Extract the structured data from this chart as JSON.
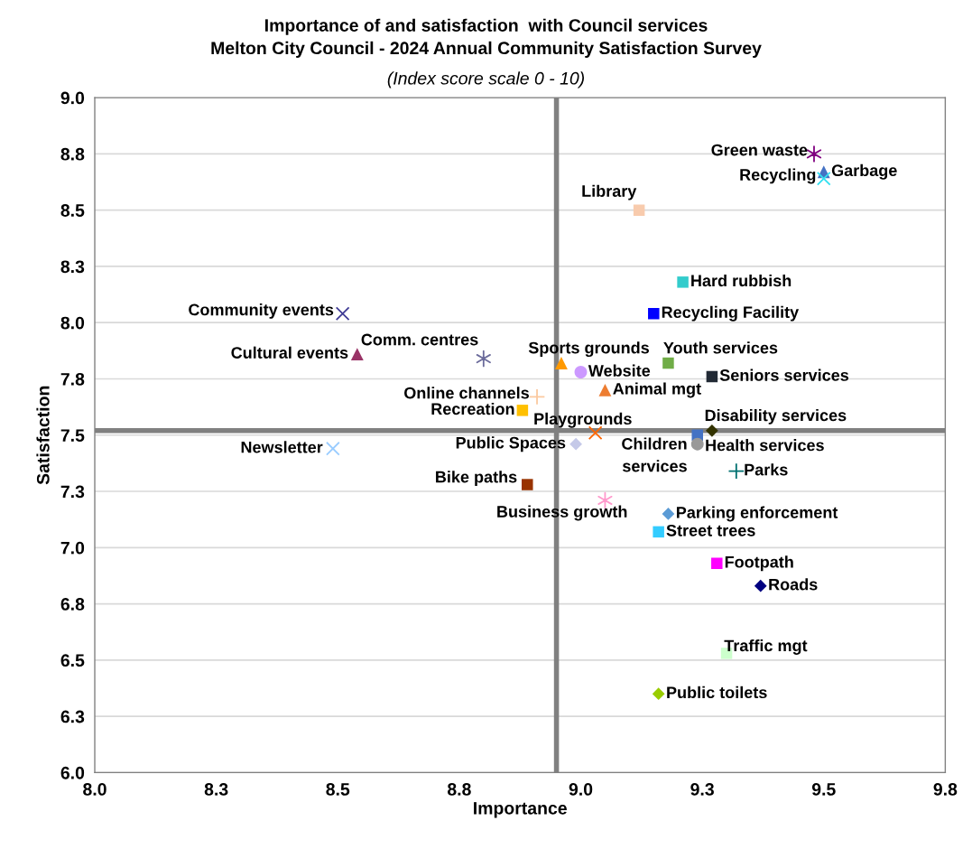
{
  "chart_data": {
    "type": "scatter",
    "title": "Importance of and satisfaction  with Council services\nMelton City Council - 2024 Annual Community Satisfaction Survey",
    "subtitle": "(Index score scale 0 - 10)",
    "xlabel": "Importance",
    "ylabel": "Satisfaction",
    "xlim": [
      8.0,
      9.75
    ],
    "ylim": [
      6.0,
      9.0
    ],
    "xticks": [
      {
        "value": 8.0,
        "label": "8.0"
      },
      {
        "value": 8.25,
        "label": "8.3"
      },
      {
        "value": 8.5,
        "label": "8.5"
      },
      {
        "value": 8.75,
        "label": "8.8"
      },
      {
        "value": 9.0,
        "label": "9.0"
      },
      {
        "value": 9.25,
        "label": "9.3"
      },
      {
        "value": 9.5,
        "label": "9.5"
      },
      {
        "value": 9.75,
        "label": "9.8"
      }
    ],
    "yticks": [
      {
        "value": 6.0,
        "label": "6.0"
      },
      {
        "value": 6.25,
        "label": "6.3"
      },
      {
        "value": 6.5,
        "label": "6.5"
      },
      {
        "value": 6.75,
        "label": "6.8"
      },
      {
        "value": 7.0,
        "label": "7.0"
      },
      {
        "value": 7.25,
        "label": "7.3"
      },
      {
        "value": 7.5,
        "label": "7.5"
      },
      {
        "value": 7.75,
        "label": "7.8"
      },
      {
        "value": 8.0,
        "label": "8.0"
      },
      {
        "value": 8.25,
        "label": "8.3"
      },
      {
        "value": 8.5,
        "label": "8.5"
      },
      {
        "value": 8.75,
        "label": "8.8"
      },
      {
        "value": 9.0,
        "label": "9.0"
      }
    ],
    "grid": "y",
    "ref_lines": [
      {
        "axis": "x",
        "value": 8.95,
        "color": "#808080"
      },
      {
        "axis": "y",
        "value": 7.52,
        "color": "#808080"
      }
    ],
    "series": [
      {
        "name": "Green waste",
        "color": "#800080",
        "marker": "cross",
        "x": [
          9.48
        ],
        "values": [
          8.75
        ]
      },
      {
        "name": "Garbage",
        "color": "#4472c4",
        "marker": "triangle",
        "x": [
          9.5
        ],
        "values": [
          8.67
        ]
      },
      {
        "name": "Recycling",
        "color": "#33e0f0",
        "marker": "cross",
        "x": [
          9.5
        ],
        "values": [
          8.64
        ]
      },
      {
        "name": "Library",
        "color": "#f8cbad",
        "marker": "square",
        "x": [
          9.12
        ],
        "values": [
          8.5
        ]
      },
      {
        "name": "Hard rubbish",
        "color": "#33cccc",
        "marker": "square",
        "x": [
          9.21
        ],
        "values": [
          8.18
        ]
      },
      {
        "name": "Recycling Facility",
        "color": "#0000ff",
        "marker": "square",
        "x": [
          9.15
        ],
        "values": [
          8.04
        ]
      },
      {
        "name": "Community events",
        "color": "#403c96",
        "marker": "cross",
        "x": [
          8.51
        ],
        "values": [
          8.04
        ]
      },
      {
        "name": "Cultural events",
        "color": "#993366",
        "marker": "triangle",
        "x": [
          8.54
        ],
        "values": [
          7.86
        ]
      },
      {
        "name": "Comm. centres",
        "color": "#6b6b9b",
        "marker": "cross",
        "x": [
          8.8
        ],
        "values": [
          7.84
        ]
      },
      {
        "name": "Sports grounds",
        "color": "#ff9900",
        "marker": "triangle",
        "x": [
          8.96
        ],
        "values": [
          7.82
        ]
      },
      {
        "name": "Website",
        "color": "#cc99ff",
        "marker": "circle",
        "x": [
          9.0
        ],
        "values": [
          7.78
        ]
      },
      {
        "name": "Youth services",
        "color": "#70ad47",
        "marker": "square",
        "x": [
          9.18
        ],
        "values": [
          7.82
        ]
      },
      {
        "name": "Seniors services",
        "color": "#222a35",
        "marker": "square",
        "x": [
          9.27
        ],
        "values": [
          7.76
        ]
      },
      {
        "name": "Animal mgt",
        "color": "#ed7d31",
        "marker": "triangle",
        "x": [
          9.05
        ],
        "values": [
          7.7
        ]
      },
      {
        "name": "Online channels",
        "color": "#fbc9a0",
        "marker": "plus",
        "x": [
          8.91
        ],
        "values": [
          7.67
        ]
      },
      {
        "name": "Recreation",
        "color": "#ffc000",
        "marker": "square",
        "x": [
          8.88
        ],
        "values": [
          7.61
        ]
      },
      {
        "name": "Disability services",
        "color": "#333300",
        "marker": "diamond",
        "x": [
          9.27
        ],
        "values": [
          7.52
        ]
      },
      {
        "name": "Playgrounds",
        "color": "#ff6600",
        "marker": "cross",
        "x": [
          9.03
        ],
        "values": [
          7.51
        ]
      },
      {
        "name": "Children services",
        "color": "#4472c4",
        "marker": "square",
        "x": [
          9.24
        ],
        "values": [
          7.5
        ]
      },
      {
        "name": "Health services",
        "color": "#999999",
        "marker": "circle",
        "x": [
          9.24
        ],
        "values": [
          7.46
        ]
      },
      {
        "name": "Public Spaces",
        "color": "#c5c9e8",
        "marker": "diamond",
        "x": [
          8.99
        ],
        "values": [
          7.46
        ]
      },
      {
        "name": "Newsletter",
        "color": "#99ccff",
        "marker": "cross",
        "x": [
          8.49
        ],
        "values": [
          7.44
        ]
      },
      {
        "name": "Parks",
        "color": "#007070",
        "marker": "plus",
        "x": [
          9.32
        ],
        "values": [
          7.34
        ]
      },
      {
        "name": "Bike paths",
        "color": "#993300",
        "marker": "square",
        "x": [
          8.89
        ],
        "values": [
          7.28
        ]
      },
      {
        "name": "Business growth",
        "color": "#ff99cc",
        "marker": "cross",
        "x": [
          9.05
        ],
        "values": [
          7.21
        ]
      },
      {
        "name": "Parking enforcement",
        "color": "#5b9bd5",
        "marker": "diamond",
        "x": [
          9.18
        ],
        "values": [
          7.15
        ]
      },
      {
        "name": "Street trees",
        "color": "#33ccff",
        "marker": "square",
        "x": [
          9.16
        ],
        "values": [
          7.07
        ]
      },
      {
        "name": "Footpath",
        "color": "#ff00ff",
        "marker": "square",
        "x": [
          9.28
        ],
        "values": [
          6.93
        ]
      },
      {
        "name": "Roads",
        "color": "#000080",
        "marker": "diamond",
        "x": [
          9.37
        ],
        "values": [
          6.83
        ]
      },
      {
        "name": "Traffic mgt",
        "color": "#ccffcc",
        "marker": "square",
        "x": [
          9.3
        ],
        "values": [
          6.53
        ]
      },
      {
        "name": "Public toilets",
        "color": "#99cc00",
        "marker": "diamond",
        "x": [
          9.16
        ],
        "values": [
          6.35
        ]
      }
    ]
  }
}
